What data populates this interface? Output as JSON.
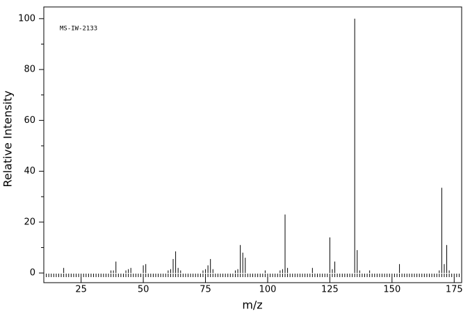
{
  "chart_data": {
    "type": "bar",
    "title": "MS-IW-2133",
    "x_label": "m/z",
    "y_label": "Relative Intensity",
    "color": "#000000",
    "x": [
      18,
      37,
      38,
      39,
      43,
      44,
      45,
      50,
      51,
      60,
      61,
      62,
      63,
      64,
      65,
      74,
      75,
      76,
      77,
      78,
      87,
      88,
      89,
      90,
      91,
      99,
      105,
      106,
      107,
      108,
      118,
      125,
      126,
      127,
      135,
      136,
      137,
      141,
      153,
      169,
      170,
      171,
      172,
      173
    ],
    "values": [
      2,
      1,
      1,
      4.5,
      1,
      1.5,
      2,
      3,
      3.5,
      1,
      1.5,
      5.5,
      8.5,
      2,
      1,
      1,
      1.5,
      3,
      5.5,
      1.5,
      1,
      1.5,
      11,
      8,
      6,
      1,
      1,
      1.5,
      23,
      2,
      2,
      14,
      1.5,
      4.5,
      100,
      9,
      1,
      1,
      3.5,
      1,
      33.5,
      3.5,
      11,
      1
    ],
    "xlim": [
      10,
      178
    ],
    "ylim": [
      -3.8,
      104.6
    ],
    "xticks": [
      25,
      50,
      75,
      100,
      125,
      150,
      175
    ],
    "yticks": [
      0,
      20,
      40,
      60,
      80,
      100
    ],
    "yminorticks": [
      10,
      30,
      50,
      70,
      90
    ],
    "xminorticks": [
      11,
      12,
      13,
      14,
      15,
      16,
      17,
      18,
      19,
      20,
      21,
      22,
      23,
      24,
      26,
      27,
      28,
      29,
      30,
      31,
      32,
      33,
      34,
      35,
      36,
      37,
      38,
      39,
      40,
      41,
      42,
      43,
      44,
      45,
      46,
      47,
      48,
      49,
      51,
      52,
      53,
      54,
      55,
      56,
      57,
      58,
      59,
      60,
      61,
      62,
      63,
      64,
      65,
      66,
      67,
      68,
      69,
      70,
      71,
      72,
      73,
      74,
      76,
      77,
      78,
      79,
      80,
      81,
      82,
      83,
      84,
      85,
      86,
      87,
      88,
      89,
      90,
      91,
      92,
      93,
      94,
      95,
      96,
      97,
      98,
      99,
      101,
      102,
      103,
      104,
      105,
      106,
      107,
      108,
      109,
      110,
      111,
      112,
      113,
      114,
      115,
      116,
      117,
      118,
      119,
      120,
      121,
      122,
      123,
      124,
      126,
      127,
      128,
      129,
      130,
      131,
      132,
      133,
      134,
      135,
      136,
      137,
      138,
      139,
      140,
      141,
      142,
      143,
      144,
      145,
      146,
      147,
      148,
      149,
      151,
      152,
      153,
      154,
      155,
      156,
      157,
      158,
      159,
      160,
      161,
      162,
      163,
      164,
      165,
      166,
      167,
      168,
      169,
      170,
      171,
      172,
      173,
      174,
      176,
      177
    ]
  }
}
